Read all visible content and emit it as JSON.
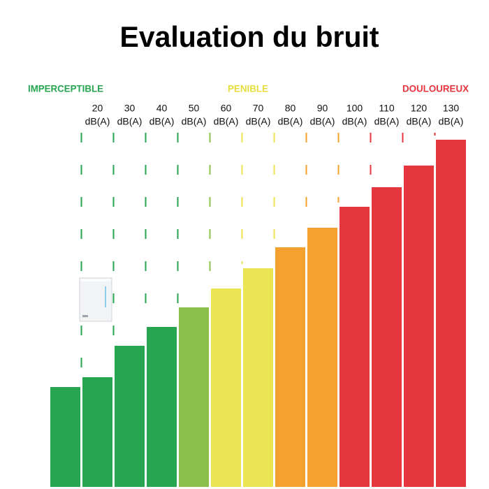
{
  "chart_data": {
    "type": "bar",
    "title": "Evaluation du bruit",
    "categories": [
      null,
      "20",
      "30",
      "40",
      "50",
      "60",
      "70",
      "80",
      "90",
      "100",
      "110",
      "120",
      "130"
    ],
    "category_unit": "dB(A)",
    "values": [
      143,
      157,
      202,
      229,
      257,
      284,
      313,
      343,
      371,
      401,
      429,
      460,
      497
    ],
    "colors": [
      "#27a550",
      "#27a550",
      "#27a550",
      "#27a550",
      "#8cbf4b",
      "#ece553",
      "#ece553",
      "#f4a12f",
      "#f4a12f",
      "#e5353d",
      "#e5353d",
      "#e5353d",
      "#e5353d"
    ],
    "ylim": [
      0,
      500
    ],
    "annotations": [
      {
        "text": "IMPERCEPTIBLE",
        "color": "#27a550"
      },
      {
        "text": "PENIBLE",
        "color": "#e6de3c"
      },
      {
        "text": "DOULOUREUX",
        "color": "#e5353d"
      }
    ]
  }
}
